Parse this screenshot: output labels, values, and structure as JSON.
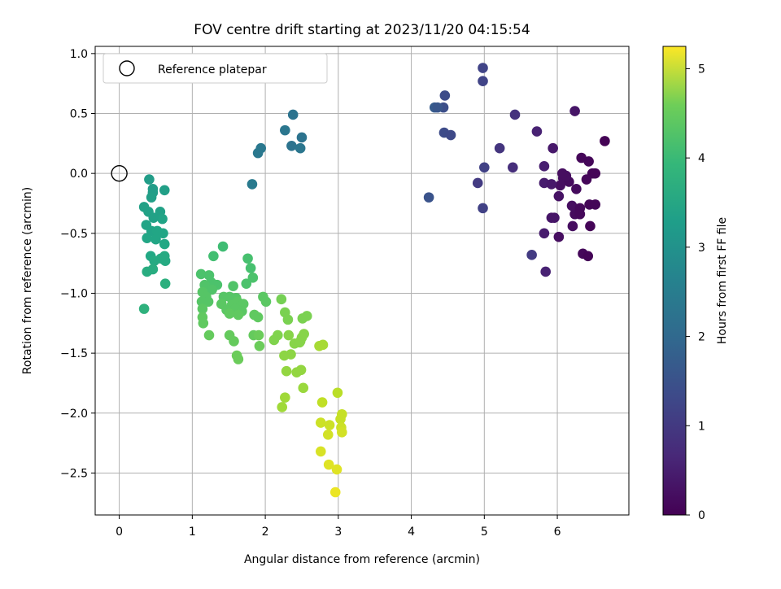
{
  "chart_data": {
    "type": "scatter",
    "title": "FOV centre drift starting at 2023/11/20 04:15:54",
    "xlabel": "Angular distance from reference (arcmin)",
    "ylabel": "Rotation from reference (arcmin)",
    "xlim": [
      -0.33,
      6.98
    ],
    "ylim": [
      -2.85,
      1.06
    ],
    "xticks": [
      0,
      1,
      2,
      3,
      4,
      5,
      6
    ],
    "xtick_labels": [
      "0",
      "1",
      "2",
      "3",
      "4",
      "5",
      "6"
    ],
    "yticks": [
      1.0,
      0.5,
      0.0,
      -0.5,
      -1.0,
      -1.5,
      -2.0,
      -2.5
    ],
    "ytick_labels": [
      "1.0",
      "0.5",
      "0.0",
      "−0.5",
      "−1.0",
      "−1.5",
      "−2.0",
      "−2.5"
    ],
    "grid": true,
    "legend": {
      "placement": "top-left",
      "entries": [
        {
          "label": "Reference platepar",
          "marker": "open-circle"
        }
      ]
    },
    "reference_point": {
      "x": 0,
      "y": 0
    },
    "colorbar": {
      "label": "Hours from first FF file",
      "colormap": "viridis",
      "range": [
        0,
        5.25
      ],
      "ticks": [
        0,
        1,
        2,
        3,
        4,
        5
      ],
      "tick_labels": [
        "0",
        "1",
        "2",
        "3",
        "4",
        "5"
      ]
    },
    "points": [
      [
        5.65,
        -0.68,
        0.9
      ],
      [
        5.84,
        -0.82,
        0.5
      ],
      [
        5.82,
        -0.5,
        0.4
      ],
      [
        6.02,
        -0.53,
        0.2
      ],
      [
        6.35,
        -0.67,
        0.1
      ],
      [
        6.42,
        -0.69,
        0.05
      ],
      [
        6.21,
        -0.44,
        0.2
      ],
      [
        6.24,
        -0.34,
        0.15
      ],
      [
        6.31,
        -0.34,
        0.1
      ],
      [
        6.45,
        -0.44,
        0.05
      ],
      [
        6.2,
        -0.27,
        0.2
      ],
      [
        6.31,
        -0.29,
        0.1
      ],
      [
        6.44,
        -0.26,
        0.05
      ],
      [
        6.52,
        -0.26,
        0.05
      ],
      [
        5.96,
        -0.37,
        0.3
      ],
      [
        5.92,
        -0.37,
        0.3
      ],
      [
        6.02,
        -0.19,
        0.25
      ],
      [
        6.08,
        -0.04,
        0.2
      ],
      [
        6.16,
        -0.07,
        0.15
      ],
      [
        6.26,
        -0.13,
        0.15
      ],
      [
        6.04,
        -0.1,
        0.2
      ],
      [
        6.12,
        -0.02,
        0.2
      ],
      [
        6.07,
        0.0,
        0.2
      ],
      [
        6.48,
        0.0,
        0.05
      ],
      [
        6.51,
        0.0,
        0.05
      ],
      [
        6.43,
        0.1,
        0.08
      ],
      [
        6.33,
        0.13,
        0.08
      ],
      [
        6.4,
        -0.05,
        0.08
      ],
      [
        5.82,
        -0.08,
        0.4
      ],
      [
        5.92,
        -0.09,
        0.35
      ],
      [
        5.82,
        0.06,
        0.45
      ],
      [
        5.94,
        0.21,
        0.35
      ],
      [
        5.72,
        0.35,
        0.5
      ],
      [
        5.39,
        0.05,
        0.7
      ],
      [
        5.42,
        0.49,
        0.75
      ],
      [
        5.21,
        0.21,
        0.8
      ],
      [
        4.91,
        -0.08,
        0.9
      ],
      [
        5.0,
        0.05,
        1.0
      ],
      [
        4.98,
        -0.29,
        1.0
      ],
      [
        6.24,
        0.52,
        0.3
      ],
      [
        6.52,
        0.0,
        0.06
      ],
      [
        6.65,
        0.27,
        0.02
      ],
      [
        4.98,
        0.88,
        1.05
      ],
      [
        4.98,
        0.77,
        1.05
      ],
      [
        4.46,
        0.65,
        1.2
      ],
      [
        4.44,
        0.55,
        1.25
      ],
      [
        4.32,
        0.55,
        1.5
      ],
      [
        4.36,
        0.55,
        1.4
      ],
      [
        4.45,
        0.34,
        1.2
      ],
      [
        4.54,
        0.32,
        1.15
      ],
      [
        4.24,
        -0.2,
        1.35
      ],
      [
        2.38,
        0.49,
        2.0
      ],
      [
        2.27,
        0.36,
        2.05
      ],
      [
        2.36,
        0.23,
        2.0
      ],
      [
        2.5,
        0.3,
        2.0
      ],
      [
        2.48,
        0.21,
        2.05
      ],
      [
        1.94,
        0.21,
        2.1
      ],
      [
        1.9,
        0.17,
        2.1
      ],
      [
        1.82,
        -0.09,
        2.15
      ],
      [
        0.41,
        -0.05,
        2.9
      ],
      [
        0.46,
        -0.13,
        2.9
      ],
      [
        0.46,
        -0.16,
        2.9
      ],
      [
        0.62,
        -0.14,
        2.95
      ],
      [
        0.44,
        -0.2,
        2.95
      ],
      [
        0.34,
        -0.28,
        3.0
      ],
      [
        0.4,
        -0.32,
        3.0
      ],
      [
        0.56,
        -0.32,
        3.0
      ],
      [
        0.59,
        -0.38,
        3.05
      ],
      [
        0.47,
        -0.37,
        3.0
      ],
      [
        0.37,
        -0.43,
        3.05
      ],
      [
        0.44,
        -0.48,
        3.05
      ],
      [
        0.52,
        -0.48,
        3.1
      ],
      [
        0.6,
        -0.5,
        3.1
      ],
      [
        0.38,
        -0.54,
        3.1
      ],
      [
        0.5,
        -0.55,
        3.1
      ],
      [
        0.62,
        -0.59,
        3.15
      ],
      [
        0.43,
        -0.69,
        3.15
      ],
      [
        0.57,
        -0.71,
        3.2
      ],
      [
        0.62,
        -0.69,
        3.2
      ],
      [
        0.63,
        -0.73,
        3.2
      ],
      [
        0.48,
        -0.73,
        3.2
      ],
      [
        0.38,
        -0.82,
        3.25
      ],
      [
        0.46,
        -0.8,
        3.25
      ],
      [
        0.63,
        -0.92,
        3.3
      ],
      [
        0.34,
        -1.13,
        3.35
      ],
      [
        1.42,
        -0.61,
        3.6
      ],
      [
        1.29,
        -0.69,
        3.65
      ],
      [
        1.76,
        -0.71,
        3.7
      ],
      [
        1.8,
        -0.79,
        3.7
      ],
      [
        1.12,
        -0.84,
        3.75
      ],
      [
        1.23,
        -0.85,
        3.75
      ],
      [
        1.26,
        -0.91,
        3.75
      ],
      [
        1.34,
        -0.93,
        3.75
      ],
      [
        1.17,
        -0.93,
        3.8
      ],
      [
        1.27,
        -0.97,
        3.8
      ],
      [
        1.74,
        -0.92,
        3.75
      ],
      [
        1.83,
        -0.87,
        3.75
      ],
      [
        1.56,
        -0.94,
        3.8
      ],
      [
        1.14,
        -0.99,
        3.85
      ],
      [
        1.19,
        -1.03,
        3.85
      ],
      [
        1.22,
        -1.07,
        3.85
      ],
      [
        1.13,
        -1.07,
        3.85
      ],
      [
        1.43,
        -1.03,
        3.85
      ],
      [
        1.51,
        -1.03,
        3.85
      ],
      [
        1.6,
        -1.04,
        3.85
      ],
      [
        1.4,
        -1.09,
        3.9
      ],
      [
        1.54,
        -1.1,
        3.9
      ],
      [
        1.62,
        -1.07,
        3.9
      ],
      [
        1.7,
        -1.09,
        3.9
      ],
      [
        1.97,
        -1.03,
        3.9
      ],
      [
        2.01,
        -1.07,
        3.9
      ],
      [
        1.14,
        -1.13,
        3.9
      ],
      [
        1.47,
        -1.14,
        3.9
      ],
      [
        1.59,
        -1.13,
        3.9
      ],
      [
        1.68,
        -1.15,
        3.9
      ],
      [
        1.51,
        -1.17,
        3.95
      ],
      [
        1.63,
        -1.18,
        3.95
      ],
      [
        1.14,
        -1.2,
        3.95
      ],
      [
        1.15,
        -1.25,
        3.95
      ],
      [
        1.85,
        -1.18,
        3.95
      ],
      [
        1.9,
        -1.2,
        3.95
      ],
      [
        1.23,
        -1.35,
        4.0
      ],
      [
        1.51,
        -1.35,
        4.0
      ],
      [
        1.57,
        -1.4,
        4.0
      ],
      [
        1.84,
        -1.35,
        4.0
      ],
      [
        1.91,
        -1.35,
        4.05
      ],
      [
        1.92,
        -1.44,
        4.05
      ],
      [
        1.61,
        -1.52,
        4.05
      ],
      [
        1.63,
        -1.55,
        4.05
      ],
      [
        2.22,
        -1.05,
        4.15
      ],
      [
        2.27,
        -1.16,
        4.2
      ],
      [
        2.31,
        -1.22,
        4.2
      ],
      [
        2.51,
        -1.21,
        4.2
      ],
      [
        2.57,
        -1.19,
        4.2
      ],
      [
        2.17,
        -1.35,
        4.25
      ],
      [
        2.12,
        -1.39,
        4.25
      ],
      [
        2.32,
        -1.35,
        4.3
      ],
      [
        2.4,
        -1.42,
        4.3
      ],
      [
        2.47,
        -1.41,
        4.3
      ],
      [
        2.5,
        -1.37,
        4.3
      ],
      [
        2.53,
        -1.34,
        4.3
      ],
      [
        2.48,
        -1.4,
        4.3
      ],
      [
        2.26,
        -1.52,
        4.35
      ],
      [
        2.35,
        -1.51,
        4.35
      ],
      [
        2.29,
        -1.65,
        4.4
      ],
      [
        2.43,
        -1.66,
        4.4
      ],
      [
        2.49,
        -1.64,
        4.4
      ],
      [
        2.52,
        -1.79,
        4.45
      ],
      [
        2.27,
        -1.87,
        4.5
      ],
      [
        2.23,
        -1.95,
        4.5
      ],
      [
        2.74,
        -1.44,
        4.55
      ],
      [
        2.79,
        -1.43,
        4.55
      ],
      [
        2.99,
        -1.83,
        4.7
      ],
      [
        2.78,
        -1.91,
        4.75
      ],
      [
        3.05,
        -2.01,
        4.8
      ],
      [
        3.03,
        -2.05,
        4.8
      ],
      [
        2.76,
        -2.08,
        4.85
      ],
      [
        2.88,
        -2.1,
        4.85
      ],
      [
        3.04,
        -2.12,
        4.85
      ],
      [
        3.05,
        -2.16,
        4.9
      ],
      [
        2.86,
        -2.18,
        4.9
      ],
      [
        2.76,
        -2.32,
        4.95
      ],
      [
        2.87,
        -2.43,
        5.0
      ],
      [
        2.98,
        -2.47,
        5.0
      ],
      [
        2.96,
        -2.66,
        5.1
      ]
    ]
  }
}
